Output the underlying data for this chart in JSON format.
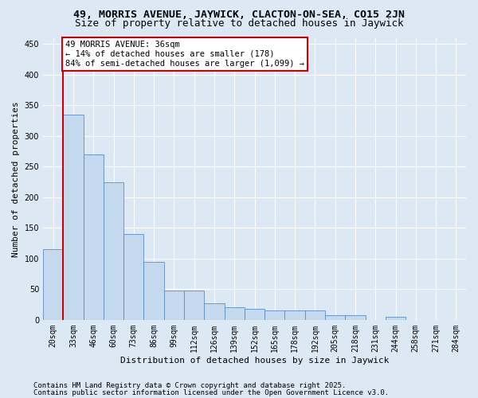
{
  "title1": "49, MORRIS AVENUE, JAYWICK, CLACTON-ON-SEA, CO15 2JN",
  "title2": "Size of property relative to detached houses in Jaywick",
  "xlabel": "Distribution of detached houses by size in Jaywick",
  "ylabel": "Number of detached properties",
  "categories": [
    "20sqm",
    "33sqm",
    "46sqm",
    "60sqm",
    "73sqm",
    "86sqm",
    "99sqm",
    "112sqm",
    "126sqm",
    "139sqm",
    "152sqm",
    "165sqm",
    "178sqm",
    "192sqm",
    "205sqm",
    "218sqm",
    "231sqm",
    "244sqm",
    "258sqm",
    "271sqm",
    "284sqm"
  ],
  "values": [
    115,
    335,
    270,
    225,
    140,
    95,
    48,
    48,
    27,
    20,
    18,
    15,
    15,
    15,
    8,
    8,
    0,
    5,
    0,
    0,
    0
  ],
  "bar_color": "#c5d9ee",
  "bar_edge_color": "#5b8ec4",
  "vline_color": "#cc0000",
  "annotation_title": "49 MORRIS AVENUE: 36sqm",
  "annotation_line2": "← 14% of detached houses are smaller (178)",
  "annotation_line3": "84% of semi-detached houses are larger (1,099) →",
  "annotation_box_color": "#cc0000",
  "ylim": [
    0,
    460
  ],
  "yticks": [
    0,
    50,
    100,
    150,
    200,
    250,
    300,
    350,
    400,
    450
  ],
  "footer1": "Contains HM Land Registry data © Crown copyright and database right 2025.",
  "footer2": "Contains public sector information licensed under the Open Government Licence v3.0.",
  "bg_color": "#dde8f5",
  "plot_bg_color": "#dde8f5",
  "grid_color": "#ffffff",
  "title_fontsize": 9.5,
  "subtitle_fontsize": 9,
  "axis_label_fontsize": 8,
  "tick_fontsize": 7,
  "annotation_fontsize": 7.5,
  "footer_fontsize": 6.5
}
